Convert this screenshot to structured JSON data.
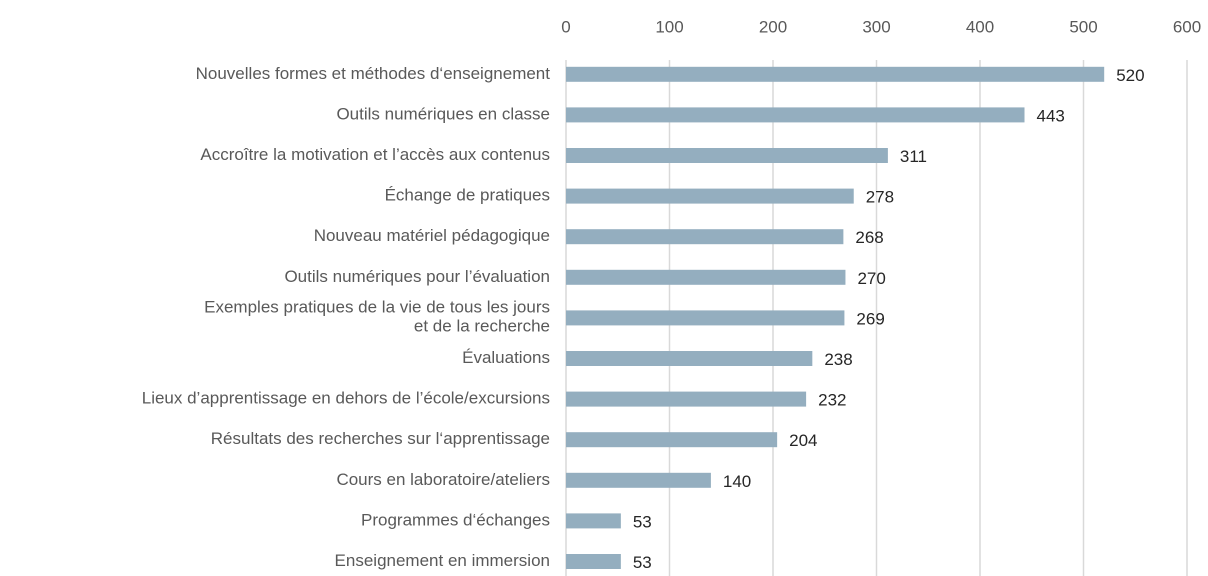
{
  "chart_data": {
    "type": "barh",
    "categories": [
      "Nouvelles formes et méthodes d‘enseignement",
      "Outils numériques en classe",
      "Accroître la motivation et l’accès aux contenus",
      "Échange de pratiques",
      "Nouveau matériel pédagogique",
      "Outils numériques pour l’évaluation",
      "Exemples pratiques de la vie de tous les jours\net de la recherche",
      "Évaluations",
      "Lieux d’apprentissage en dehors de l’école/excursions",
      "Résultats des recherches sur l‘apprentissage",
      "Cours en laboratoire/ateliers",
      "Programmes d‘échanges",
      "Enseignement en immersion"
    ],
    "values": [
      520,
      443,
      311,
      278,
      268,
      270,
      269,
      238,
      232,
      204,
      140,
      53,
      53
    ],
    "color": "#94aebf",
    "xlim": [
      0,
      600
    ],
    "xticks": [
      0,
      100,
      200,
      300,
      400,
      500,
      600
    ],
    "grid": true
  }
}
